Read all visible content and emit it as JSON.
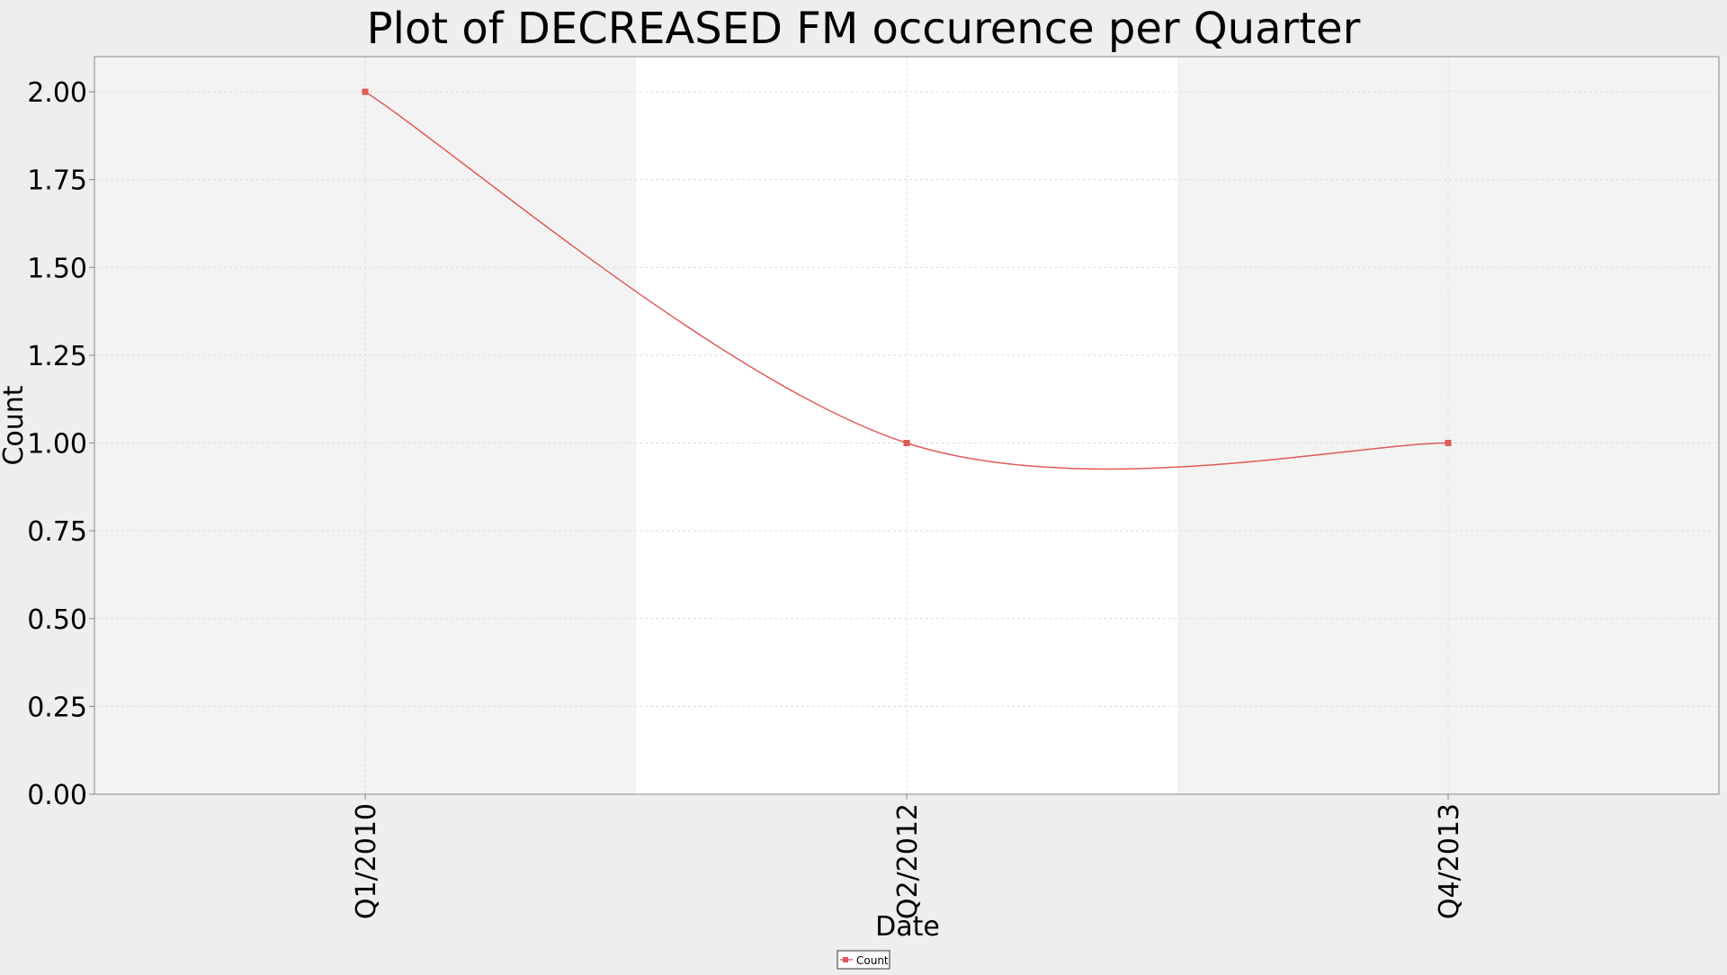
{
  "chart_data": {
    "type": "line",
    "title": "Plot of DECREASED FM occurence per Quarter",
    "xlabel": "Date",
    "ylabel": "Count",
    "categories": [
      "Q1/2010",
      "Q2/2012",
      "Q4/2013"
    ],
    "x": [
      "Q1/2010",
      "Q2/2012",
      "Q4/2013"
    ],
    "series": [
      {
        "name": "Count",
        "values": [
          2.0,
          1.0,
          1.0
        ],
        "color": "#e05a5a"
      }
    ],
    "ylim": [
      0,
      2.1
    ],
    "yticks": [
      "0.00",
      "0.25",
      "0.50",
      "0.75",
      "1.00",
      "1.25",
      "1.50",
      "1.75",
      "2.00"
    ],
    "ytick_values": [
      0,
      0.25,
      0.5,
      0.75,
      1.0,
      1.25,
      1.5,
      1.75,
      2.0
    ],
    "grid": true,
    "smooth": true,
    "legend_position": "bottom-center",
    "colors": {
      "page_background": "#eeeeee",
      "plot_band_alt": "#f3f3f3",
      "plot_band_main": "#ffffff",
      "grid": "#dcdcdc",
      "axis": "#888888",
      "series": "#e05a5a"
    }
  }
}
